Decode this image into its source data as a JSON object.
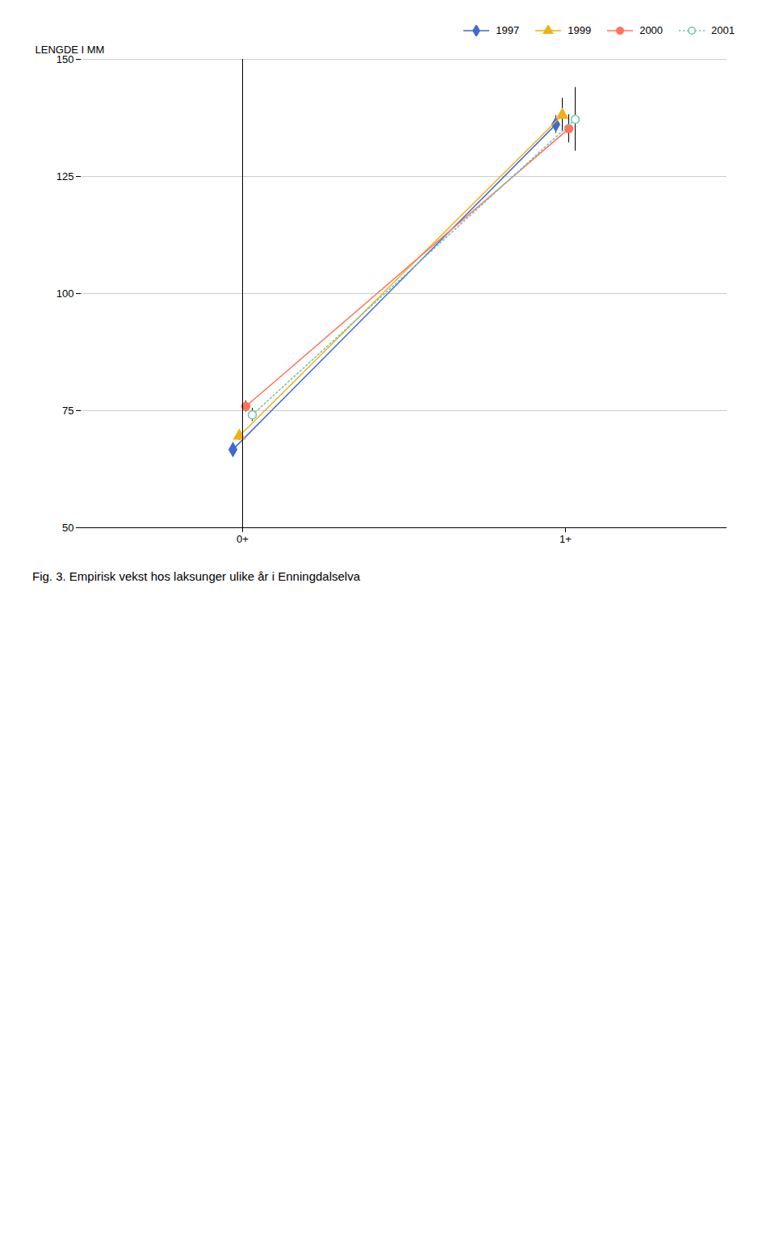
{
  "chart_data": {
    "type": "line",
    "title": "Fig. 3. Empirisk vekst hos laksunger ulike år i Enningdalselva",
    "categories": [
      "0+",
      "1+"
    ],
    "series": [
      {
        "name": "1997",
        "values": [
          66.7,
          136.1
        ],
        "error": [
          0.7,
          1.9
        ],
        "marker": "diamond",
        "line_style": "solid"
      },
      {
        "name": "1999",
        "values": [
          69.6,
          138.1
        ],
        "error": [
          0.9,
          3.6
        ],
        "marker": "triangle",
        "line_style": "solid"
      },
      {
        "name": "2000",
        "values": [
          75.9,
          135.2
        ],
        "error": [
          1.2,
          3.0
        ],
        "marker": "circle",
        "line_style": "solid"
      },
      {
        "name": "2001",
        "values": [
          74.1,
          137.2
        ],
        "error": [
          1.4,
          6.8
        ],
        "marker": "circle_open",
        "line_style": "dotted"
      }
    ],
    "ylabel": "LENGDE I MM",
    "ylim": [
      50,
      150
    ],
    "yticks": [
      50,
      75,
      100,
      125,
      150
    ],
    "grid": true,
    "legend": "upper right"
  }
}
